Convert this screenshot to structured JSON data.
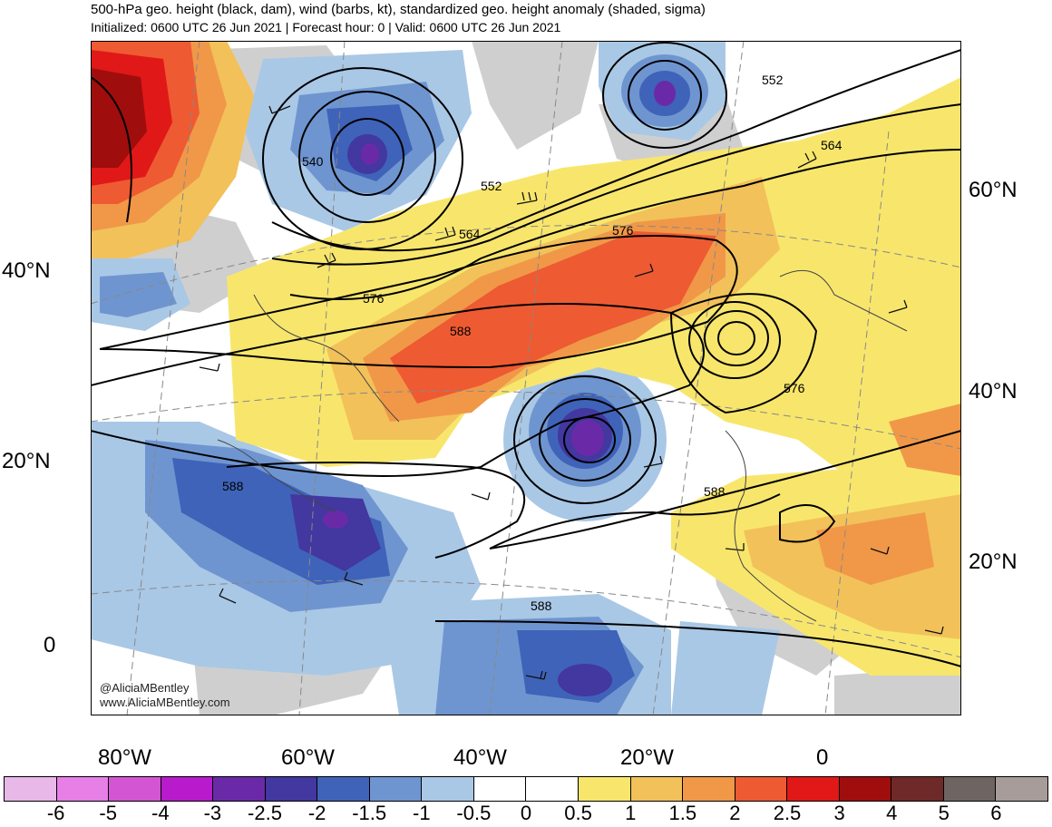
{
  "header": {
    "title": "500-hPa geo. height (black, dam), wind (barbs, kt), standardized geo. height anomaly (shaded, sigma)",
    "subtitle": "Initialized: 0600 UTC 26 Jun 2021 | Forecast hour: 0 | Valid: 0600 UTC 26 Jun 2021"
  },
  "map": {
    "lat_labels_left": [
      "40°N",
      "20°N",
      "0"
    ],
    "lat_labels_right": [
      "60°N",
      "40°N",
      "20°N"
    ],
    "lon_labels": [
      "80°W",
      "60°W",
      "40°W",
      "20°W",
      "0"
    ],
    "contour_labels": [
      "552",
      "564",
      "540",
      "552",
      "564",
      "576",
      "576",
      "588",
      "576",
      "588",
      "588",
      "588"
    ],
    "credits": [
      "@AliciaMBentley",
      "www.AliciaMBentley.com"
    ]
  },
  "colorbar": {
    "labels": [
      "-6",
      "-5",
      "-4",
      "-3",
      "-2.5",
      "-2",
      "-1.5",
      "-1",
      "-0.5",
      "0",
      "0.5",
      "1",
      "1.5",
      "2",
      "2.5",
      "3",
      "4",
      "5",
      "6"
    ],
    "colors": [
      "#e8b8e8",
      "#e67fe6",
      "#d455d4",
      "#b81bcc",
      "#6a2aa8",
      "#4337a0",
      "#3f63b8",
      "#6f95d0",
      "#a9c8e6",
      "#ffffff",
      "#ffffff",
      "#f8e66c",
      "#f2c15a",
      "#f09848",
      "#ee5a32",
      "#e01818",
      "#a00d0d",
      "#6e2a28",
      "#6e6563",
      "#a89c9b"
    ]
  }
}
